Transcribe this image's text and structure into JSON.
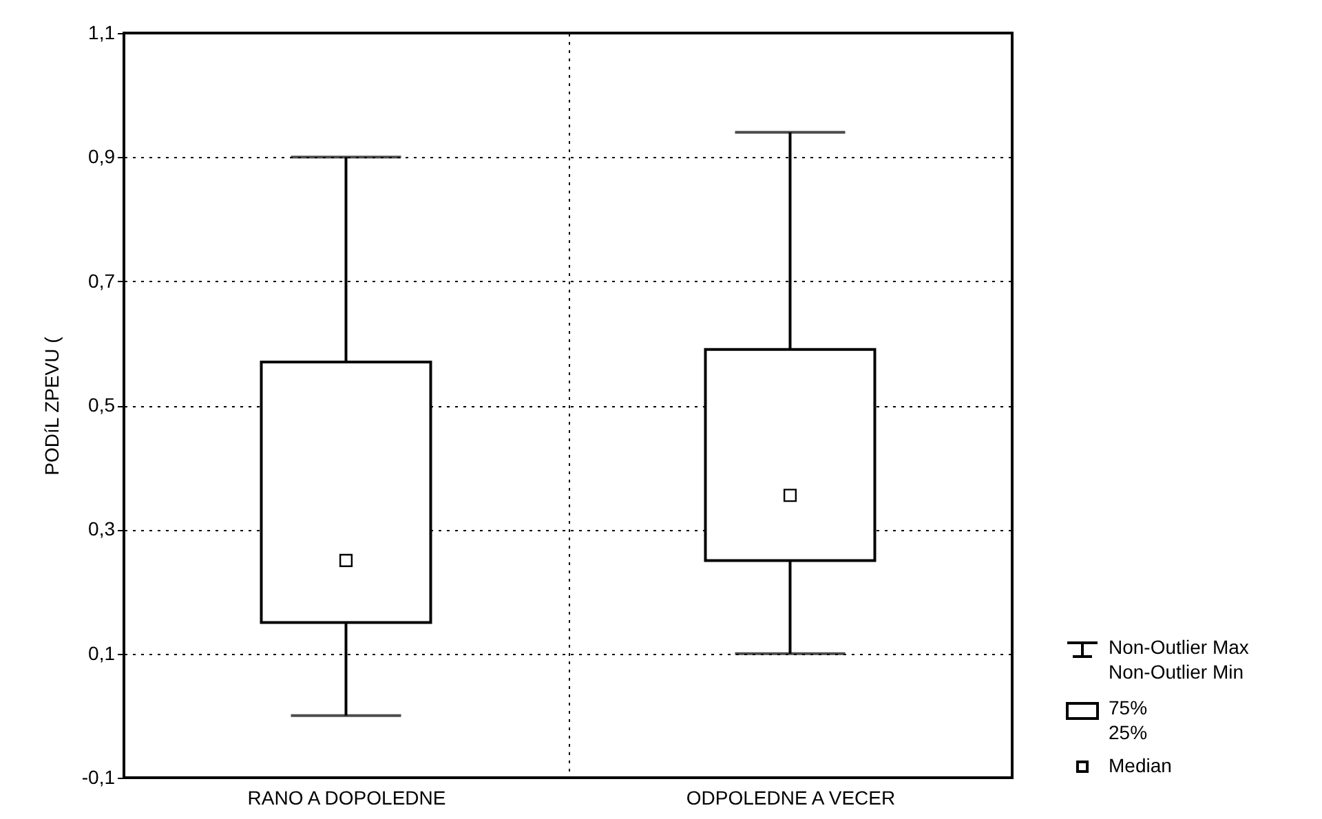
{
  "chart_data": {
    "type": "box",
    "ylabel": "PODíL ZPEVU (",
    "categories": [
      "RANO A DOPOLEDNE",
      "ODPOLEDNE A VECER"
    ],
    "boxes": [
      {
        "low": 0.0,
        "q1": 0.15,
        "median": 0.25,
        "q3": 0.57,
        "high": 0.9
      },
      {
        "low": 0.1,
        "q1": 0.25,
        "median": 0.355,
        "q3": 0.59,
        "high": 0.94
      }
    ],
    "color": "#000000",
    "ylim": [
      -0.1,
      1.1
    ],
    "yticks": [
      {
        "value": -0.1,
        "label": "-0,1"
      },
      {
        "value": 0.1,
        "label": "0,1"
      },
      {
        "value": 0.3,
        "label": "0,3"
      },
      {
        "value": 0.5,
        "label": "0,5"
      },
      {
        "value": 0.7,
        "label": "0,7"
      },
      {
        "value": 0.9,
        "label": "0,9"
      },
      {
        "value": 1.1,
        "label": "1,1"
      }
    ],
    "grid": true,
    "line_style": "dotted",
    "marker": "square",
    "annotations": [
      "Non-Outlier Max",
      "Non-Outlier Min",
      "75%",
      "25%",
      "Median"
    ]
  }
}
